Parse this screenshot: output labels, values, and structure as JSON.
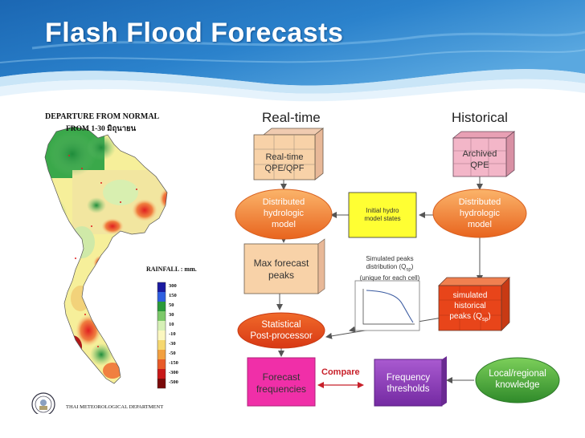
{
  "slide": {
    "title": "Flash Flood Forecasts"
  },
  "map": {
    "title_line1": "DEPARTURE FROM NORMAL",
    "title_line2": "FROM 1-30 มิถุนายน",
    "rainfall_label": "RAINFALL : mm.",
    "legend_values": [
      "300",
      "150",
      "50",
      "30",
      "10",
      "-10",
      "-30",
      "-50",
      "-150",
      "-300",
      "-500"
    ],
    "agency_label": "THAI METEOROLOGICAL DEPARTMENT"
  },
  "diagram": {
    "realtime_header": "Real-time",
    "historical_header": "Historical",
    "realtime_qpe": [
      "Real-time",
      "QPE/QPF"
    ],
    "archived_qpe": [
      "Archived",
      "QPE"
    ],
    "dist_model_left": [
      "Distributed",
      "hydrologic",
      "model"
    ],
    "dist_model_right": [
      "Distributed",
      "hydrologic",
      "model"
    ],
    "initial_states": [
      "Initial hydro",
      "model states"
    ],
    "max_peaks": [
      "Max forecast",
      "peaks"
    ],
    "sim_dist": [
      "Simulated peaks",
      "distribution (Q",
      "(unique for each cell)"
    ],
    "sim_dist_sub": "sp",
    "sim_dist_close": ")",
    "sim_hist": [
      "simulated",
      "historical",
      "peaks (Q"
    ],
    "sim_hist_sub": "sp",
    "sim_hist_close": ")",
    "stat_post": [
      "Statistical",
      "Post-processor"
    ],
    "forecast_freq": [
      "Forecast",
      "frequencies"
    ],
    "compare_label": "Compare",
    "freq_thresh": [
      "Frequency",
      "thresholds"
    ],
    "local_knowledge": [
      "Local/regional",
      "knowledge"
    ]
  },
  "colors": {
    "header_blue": "#1a66b0",
    "orange": "#f07a2a",
    "pink_box": "#f3b6c8",
    "peach_box": "#f8d2a8",
    "yellow_box": "#ffff33",
    "red_box": "#e8451a",
    "magenta": "#f02fa8",
    "purple": "#8a3ab8",
    "green": "#44a33a",
    "compare_red": "#c8202a"
  }
}
